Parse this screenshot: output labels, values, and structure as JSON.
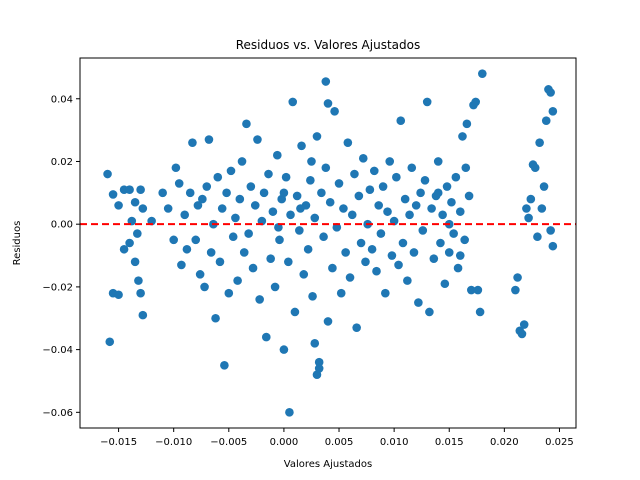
{
  "chart_data": {
    "type": "scatter",
    "title": "Residuos vs. Valores Ajustados",
    "xlabel": "Valores Ajustados",
    "ylabel": "Residuos",
    "xlim": [
      -0.0185,
      0.0265
    ],
    "ylim": [
      -0.065,
      0.053
    ],
    "xticks": [
      -0.015,
      -0.01,
      -0.005,
      0.0,
      0.005,
      0.01,
      0.015,
      0.02,
      0.025
    ],
    "xtick_labels": [
      "−0.015",
      "−0.010",
      "−0.005",
      "0.000",
      "0.005",
      "0.010",
      "0.015",
      "0.020",
      "0.025"
    ],
    "yticks": [
      -0.06,
      -0.04,
      -0.02,
      0.0,
      0.02,
      0.04
    ],
    "ytick_labels": [
      "−0.06",
      "−0.04",
      "−0.02",
      "0.00",
      "0.02",
      "0.04"
    ],
    "grid": false,
    "point_color": "#1f77b4",
    "reference_line": {
      "y": 0.0,
      "color": "#ff0000",
      "style": "dashed"
    },
    "series": [
      {
        "points": [
          [
            -0.016,
            0.016
          ],
          [
            -0.0155,
            0.0095
          ],
          [
            -0.015,
            0.006
          ],
          [
            -0.0145,
            0.011
          ],
          [
            -0.014,
            0.011
          ],
          [
            -0.0155,
            -0.022
          ],
          [
            -0.015,
            -0.0225
          ],
          [
            -0.0158,
            -0.0375
          ],
          [
            -0.0145,
            -0.008
          ],
          [
            -0.014,
            -0.006
          ],
          [
            -0.0135,
            -0.012
          ],
          [
            -0.0132,
            -0.018
          ],
          [
            -0.013,
            -0.022
          ],
          [
            -0.0128,
            -0.029
          ],
          [
            -0.0138,
            0.001
          ],
          [
            -0.013,
            0.011
          ],
          [
            -0.0128,
            0.005
          ],
          [
            -0.0135,
            0.007
          ],
          [
            -0.0133,
            -0.003
          ],
          [
            -0.012,
            0.001
          ],
          [
            -0.011,
            0.01
          ],
          [
            -0.0105,
            0.005
          ],
          [
            -0.01,
            -0.005
          ],
          [
            -0.0098,
            0.018
          ],
          [
            -0.0095,
            0.013
          ],
          [
            -0.0093,
            -0.013
          ],
          [
            -0.009,
            0.003
          ],
          [
            -0.0088,
            -0.008
          ],
          [
            -0.0085,
            0.01
          ],
          [
            -0.0083,
            0.026
          ],
          [
            -0.008,
            -0.005
          ],
          [
            -0.0078,
            0.006
          ],
          [
            -0.0076,
            -0.016
          ],
          [
            -0.0074,
            0.008
          ],
          [
            -0.0072,
            -0.02
          ],
          [
            -0.007,
            0.012
          ],
          [
            -0.0068,
            0.027
          ],
          [
            -0.0066,
            -0.009
          ],
          [
            -0.0064,
            0.0
          ],
          [
            -0.0062,
            -0.03
          ],
          [
            -0.006,
            0.015
          ],
          [
            -0.0058,
            -0.012
          ],
          [
            -0.0056,
            0.005
          ],
          [
            -0.0054,
            -0.045
          ],
          [
            -0.0052,
            0.01
          ],
          [
            -0.005,
            -0.022
          ],
          [
            -0.0048,
            0.017
          ],
          [
            -0.0046,
            -0.004
          ],
          [
            -0.0044,
            0.002
          ],
          [
            -0.0042,
            -0.018
          ],
          [
            -0.004,
            0.008
          ],
          [
            -0.0038,
            0.02
          ],
          [
            -0.0036,
            -0.009
          ],
          [
            -0.0034,
            0.032
          ],
          [
            -0.0032,
            -0.003
          ],
          [
            -0.003,
            0.012
          ],
          [
            -0.0028,
            -0.014
          ],
          [
            -0.0026,
            0.006
          ],
          [
            -0.0024,
            0.027
          ],
          [
            -0.0022,
            -0.024
          ],
          [
            -0.002,
            0.001
          ],
          [
            -0.0018,
            0.01
          ],
          [
            -0.0016,
            -0.036
          ],
          [
            -0.0014,
            0.016
          ],
          [
            -0.0012,
            -0.011
          ],
          [
            -0.001,
            0.004
          ],
          [
            -0.0008,
            -0.02
          ],
          [
            -0.0006,
            0.022
          ],
          [
            -0.0004,
            -0.005
          ],
          [
            -0.0002,
            0.008
          ],
          [
            0.0,
            -0.04
          ],
          [
            0.0002,
            0.015
          ],
          [
            0.0004,
            -0.012
          ],
          [
            0.0006,
            0.003
          ],
          [
            0.0008,
            0.039
          ],
          [
            0.001,
            -0.028
          ],
          [
            0.0012,
            0.009
          ],
          [
            0.0014,
            -0.002
          ],
          [
            0.0016,
            0.025
          ],
          [
            0.0018,
            -0.016
          ],
          [
            0.002,
            0.006
          ],
          [
            0.0022,
            -0.008
          ],
          [
            0.0024,
            0.014
          ],
          [
            0.0026,
            -0.023
          ],
          [
            0.0028,
            0.002
          ],
          [
            0.003,
            0.028
          ],
          [
            0.0032,
            -0.044
          ],
          [
            0.0034,
            0.01
          ],
          [
            0.0036,
            -0.004
          ],
          [
            0.0038,
            0.018
          ],
          [
            0.004,
            -0.031
          ],
          [
            0.0042,
            0.007
          ],
          [
            0.0044,
            -0.014
          ],
          [
            0.0046,
            0.036
          ],
          [
            0.0048,
            -0.001
          ],
          [
            0.005,
            0.013
          ],
          [
            0.0052,
            -0.022
          ],
          [
            0.0054,
            0.005
          ],
          [
            0.0056,
            -0.009
          ],
          [
            0.0058,
            0.026
          ],
          [
            0.006,
            -0.017
          ],
          [
            0.0062,
            0.003
          ],
          [
            0.0064,
            0.016
          ],
          [
            0.0066,
            -0.033
          ],
          [
            0.0068,
            0.009
          ],
          [
            0.007,
            -0.006
          ],
          [
            0.0072,
            0.021
          ],
          [
            0.0074,
            -0.012
          ],
          [
            0.0076,
            0.0
          ],
          [
            0.0078,
            0.011
          ],
          [
            0.003,
            -0.048
          ],
          [
            0.0032,
            -0.046
          ],
          [
            0.0028,
            -0.038
          ],
          [
            0.0005,
            -0.06
          ],
          [
            0.0038,
            0.0455
          ],
          [
            0.004,
            0.0385
          ],
          [
            0.0025,
            0.02
          ],
          [
            0.0015,
            0.005
          ],
          [
            0.0,
            0.01
          ],
          [
            -0.0005,
            -0.001
          ],
          [
            0.008,
            -0.008
          ],
          [
            0.0082,
            0.017
          ],
          [
            0.0084,
            -0.015
          ],
          [
            0.0086,
            0.006
          ],
          [
            0.0088,
            -0.003
          ],
          [
            0.009,
            0.012
          ],
          [
            0.0092,
            -0.022
          ],
          [
            0.0094,
            0.004
          ],
          [
            0.0096,
            0.02
          ],
          [
            0.0098,
            -0.01
          ],
          [
            0.01,
            0.001
          ],
          [
            0.0102,
            0.015
          ],
          [
            0.0104,
            -0.013
          ],
          [
            0.0106,
            0.033
          ],
          [
            0.0108,
            -0.006
          ],
          [
            0.011,
            0.008
          ],
          [
            0.0112,
            -0.018
          ],
          [
            0.0114,
            0.003
          ],
          [
            0.0116,
            0.018
          ],
          [
            0.0118,
            -0.009
          ],
          [
            0.012,
            0.006
          ],
          [
            0.0122,
            -0.025
          ],
          [
            0.0124,
            0.01
          ],
          [
            0.0126,
            -0.002
          ],
          [
            0.0128,
            0.014
          ],
          [
            0.013,
            0.039
          ],
          [
            0.0132,
            -0.028
          ],
          [
            0.0134,
            0.005
          ],
          [
            0.0136,
            -0.011
          ],
          [
            0.0138,
            0.009
          ],
          [
            0.014,
            0.02
          ],
          [
            0.0142,
            -0.006
          ],
          [
            0.0144,
            0.003
          ],
          [
            0.0146,
            -0.019
          ],
          [
            0.0148,
            0.012
          ],
          [
            0.015,
            -0.009
          ],
          [
            0.0152,
            0.007
          ],
          [
            0.0154,
            -0.003
          ],
          [
            0.0156,
            0.015
          ],
          [
            0.0158,
            -0.014
          ],
          [
            0.016,
            0.004
          ],
          [
            0.0162,
            0.028
          ],
          [
            0.0164,
            -0.005
          ],
          [
            0.0166,
            0.032
          ],
          [
            0.0168,
            0.009
          ],
          [
            0.017,
            -0.021
          ],
          [
            0.0172,
            0.038
          ],
          [
            0.0174,
            0.039
          ],
          [
            0.0176,
            -0.021
          ],
          [
            0.0178,
            -0.028
          ],
          [
            0.018,
            0.048
          ],
          [
            0.015,
            0.0
          ],
          [
            0.016,
            -0.01
          ],
          [
            0.014,
            0.01
          ],
          [
            0.0165,
            0.018
          ],
          [
            0.021,
            -0.021
          ],
          [
            0.0212,
            -0.017
          ],
          [
            0.0214,
            -0.034
          ],
          [
            0.0216,
            -0.035
          ],
          [
            0.0218,
            -0.032
          ],
          [
            0.022,
            0.005
          ],
          [
            0.0222,
            0.002
          ],
          [
            0.0224,
            0.008
          ],
          [
            0.0226,
            0.019
          ],
          [
            0.0228,
            0.018
          ],
          [
            0.023,
            -0.004
          ],
          [
            0.0232,
            0.026
          ],
          [
            0.0234,
            0.005
          ],
          [
            0.0236,
            0.012
          ],
          [
            0.0238,
            0.033
          ],
          [
            0.024,
            0.043
          ],
          [
            0.0242,
            0.042
          ],
          [
            0.0244,
            0.036
          ],
          [
            0.0242,
            -0.002
          ],
          [
            0.0244,
            -0.007
          ]
        ]
      }
    ]
  }
}
